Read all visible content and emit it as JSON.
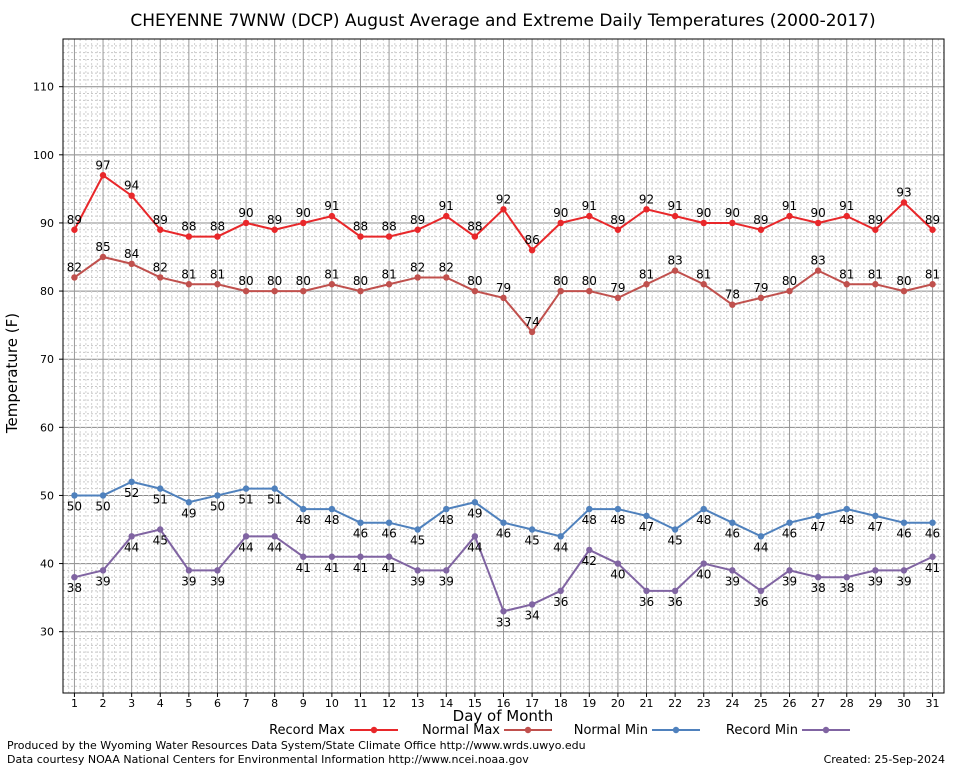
{
  "chart_data": {
    "type": "line",
    "title": "CHEYENNE 7WNW (DCP) August Average and Extreme Daily Temperatures (2000-2017)",
    "xlabel": "Day of Month",
    "ylabel": "Temperature (F)",
    "x": [
      1,
      2,
      3,
      4,
      5,
      6,
      7,
      8,
      9,
      10,
      11,
      12,
      13,
      14,
      15,
      16,
      17,
      18,
      19,
      20,
      21,
      22,
      23,
      24,
      25,
      26,
      27,
      28,
      29,
      30,
      31
    ],
    "xlim": [
      0.6,
      31.4
    ],
    "ylim": [
      21,
      117
    ],
    "yticks": [
      30,
      40,
      50,
      60,
      70,
      80,
      90,
      100,
      110
    ],
    "grid": true,
    "legend_position": "bottom",
    "series": [
      {
        "name": "Record Max",
        "color": "#e8272a",
        "values": [
          89,
          97,
          94,
          89,
          88,
          88,
          90,
          89,
          90,
          91,
          88,
          88,
          89,
          91,
          88,
          92,
          86,
          90,
          91,
          89,
          92,
          91,
          90,
          90,
          89,
          91,
          90,
          91,
          89,
          93,
          89
        ],
        "label_position": "above"
      },
      {
        "name": "Normal Max",
        "color": "#c0504d",
        "values": [
          82,
          85,
          84,
          82,
          81,
          81,
          80,
          80,
          80,
          81,
          80,
          81,
          82,
          82,
          80,
          79,
          74,
          80,
          80,
          79,
          81,
          83,
          81,
          78,
          79,
          80,
          83,
          81,
          81,
          80,
          81
        ],
        "label_position": "above"
      },
      {
        "name": "Normal Min",
        "color": "#4f81bd",
        "values": [
          50,
          50,
          52,
          51,
          49,
          50,
          51,
          51,
          48,
          48,
          46,
          46,
          45,
          48,
          49,
          46,
          45,
          44,
          48,
          48,
          47,
          45,
          48,
          46,
          44,
          46,
          47,
          48,
          47,
          46,
          46
        ],
        "label_position": "below"
      },
      {
        "name": "Record Min",
        "color": "#8064a2",
        "values": [
          38,
          39,
          44,
          45,
          39,
          39,
          44,
          44,
          41,
          41,
          41,
          41,
          39,
          39,
          44,
          33,
          34,
          36,
          42,
          40,
          36,
          36,
          40,
          39,
          36,
          39,
          38,
          38,
          39,
          39,
          41
        ],
        "label_position": "below"
      }
    ]
  },
  "footer": {
    "line1": "Produced by the Wyoming Water Resources Data System/State Climate Office http://www.wrds.uwyo.edu",
    "line2": "Data courtesy NOAA National Centers for Environmental Information http://www.ncei.noaa.gov",
    "created": "Created:  25-Sep-2024"
  }
}
